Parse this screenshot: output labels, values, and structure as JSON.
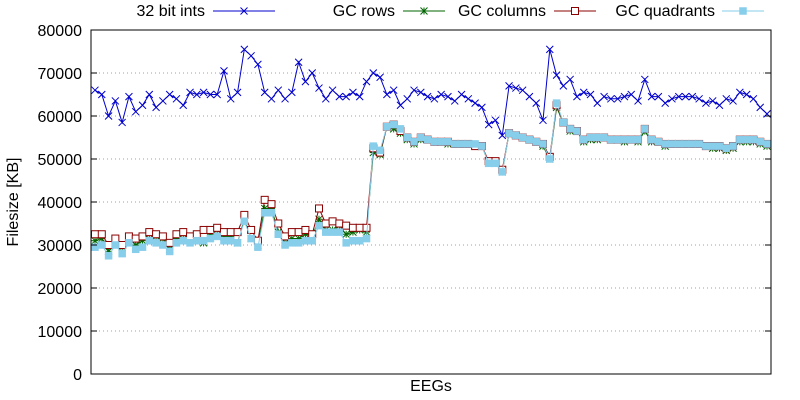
{
  "chart_data": {
    "type": "line",
    "title": "",
    "xlabel": "EEGs",
    "ylabel": "Filesize [KB]",
    "ylim": [
      0,
      80000
    ],
    "yticks": [
      0,
      10000,
      20000,
      30000,
      40000,
      50000,
      60000,
      70000,
      80000
    ],
    "grid": "horizontal dotted",
    "legend_placement": "top",
    "x": [
      1,
      2,
      3,
      4,
      5,
      6,
      7,
      8,
      9,
      10,
      11,
      12,
      13,
      14,
      15,
      16,
      17,
      18,
      19,
      20,
      21,
      22,
      23,
      24,
      25,
      26,
      27,
      28,
      29,
      30,
      31,
      32,
      33,
      34,
      35,
      36,
      37,
      38,
      39,
      40,
      41,
      42,
      43,
      44,
      45,
      46,
      47,
      48,
      49,
      50,
      51,
      52,
      53,
      54,
      55,
      56,
      57,
      58,
      59,
      60,
      61,
      62,
      63,
      64,
      65,
      66,
      67,
      68,
      69,
      70,
      71,
      72,
      73,
      74,
      75,
      76,
      77,
      78,
      79,
      80,
      81,
      82,
      83,
      84,
      85,
      86,
      87,
      88,
      89,
      90,
      91,
      92,
      93,
      94,
      95,
      96,
      97,
      98,
      99,
      100
    ],
    "series": [
      {
        "name": "32 bit ints",
        "color": "#0000cc",
        "marker": "x",
        "values": [
          66000,
          65000,
          60000,
          63500,
          58500,
          64500,
          61000,
          62500,
          65000,
          62000,
          63500,
          65000,
          64000,
          62500,
          65500,
          65000,
          65500,
          65000,
          65000,
          70500,
          64000,
          65500,
          75500,
          74000,
          72000,
          65500,
          64000,
          66000,
          64000,
          65500,
          72500,
          68000,
          70000,
          66500,
          64000,
          66000,
          64500,
          64500,
          65500,
          64500,
          68000,
          70000,
          69000,
          65000,
          66000,
          62500,
          64000,
          66000,
          65500,
          64500,
          64000,
          65000,
          64500,
          63500,
          65000,
          64000,
          63000,
          62000,
          58000,
          59000,
          55500,
          67000,
          66500,
          66000,
          64500,
          63000,
          59000,
          75500,
          69500,
          67000,
          68500,
          64500,
          65500,
          65000,
          63000,
          64500,
          64000,
          64000,
          64500,
          65000,
          63500,
          68500,
          64500,
          64500,
          63000,
          64000,
          64500,
          64500,
          64500,
          64000,
          63000,
          63500,
          62500,
          64000,
          63500,
          65500,
          65000,
          64000,
          62000,
          60500
        ]
      },
      {
        "name": "GC rows",
        "color": "#006400",
        "marker": "star",
        "values": [
          31000,
          31500,
          28500,
          31000,
          29500,
          31500,
          30000,
          31000,
          32500,
          32000,
          31500,
          29000,
          31500,
          32500,
          32000,
          31000,
          30500,
          32500,
          33500,
          32000,
          32000,
          30500,
          36000,
          31500,
          30000,
          38500,
          38500,
          33000,
          30500,
          31500,
          31500,
          32500,
          32000,
          36000,
          33500,
          33500,
          34500,
          32500,
          33000,
          33500,
          33000,
          51500,
          51000,
          57500,
          57000,
          56000,
          54500,
          53500,
          54500,
          54500,
          54000,
          54000,
          53500,
          53500,
          53500,
          53500,
          53000,
          53000,
          49000,
          49000,
          47000,
          56000,
          55500,
          55000,
          54500,
          54000,
          53000,
          50000,
          62000,
          58500,
          56500,
          56500,
          54000,
          54500,
          54500,
          55000,
          54500,
          54500,
          54000,
          54500,
          54000,
          56500,
          54000,
          54000,
          53000,
          53500,
          53500,
          53500,
          53500,
          53500,
          53000,
          52500,
          52500,
          52000,
          52500,
          54000,
          54000,
          54000,
          53500,
          53000
        ]
      },
      {
        "name": "GC columns",
        "color": "#8b0000",
        "marker": "square-open",
        "values": [
          32500,
          32500,
          30000,
          31500,
          30000,
          32000,
          31500,
          32000,
          33000,
          32500,
          32000,
          30500,
          32500,
          33000,
          32000,
          32500,
          33500,
          33500,
          34000,
          33000,
          33000,
          33000,
          37000,
          33500,
          31000,
          40500,
          39500,
          35000,
          32000,
          33000,
          33000,
          33500,
          32500,
          38500,
          35000,
          35500,
          35000,
          34500,
          34000,
          34000,
          34000,
          52500,
          51500,
          57500,
          58000,
          56500,
          55000,
          54000,
          55000,
          54500,
          54000,
          54000,
          54000,
          53500,
          53500,
          53500,
          53000,
          53000,
          49500,
          49500,
          47500,
          56000,
          55500,
          55000,
          54500,
          54000,
          53500,
          50500,
          62500,
          58500,
          57000,
          56500,
          54500,
          55000,
          55000,
          55000,
          54500,
          54500,
          54500,
          54500,
          54500,
          57000,
          54500,
          54000,
          53500,
          53500,
          53500,
          53500,
          53500,
          53500,
          53000,
          53000,
          53000,
          52500,
          53000,
          54500,
          54500,
          54500,
          54000,
          53500
        ]
      },
      {
        "name": "GC quadrants",
        "color": "#87ceeb",
        "marker": "square-filled",
        "values": [
          29500,
          30000,
          27500,
          30000,
          28000,
          30500,
          29000,
          29500,
          31000,
          30500,
          30000,
          28500,
          30500,
          31000,
          30500,
          31000,
          31000,
          31500,
          32000,
          31000,
          31000,
          30500,
          35500,
          31500,
          29500,
          37500,
          37500,
          32500,
          30000,
          30500,
          30500,
          31000,
          31000,
          34500,
          33000,
          33000,
          33000,
          30500,
          31000,
          31000,
          31500,
          53000,
          52000,
          57500,
          58000,
          57000,
          55000,
          54000,
          55000,
          54500,
          54000,
          54000,
          54000,
          53500,
          53500,
          53500,
          53500,
          53000,
          49000,
          49000,
          47000,
          56000,
          55500,
          55000,
          54500,
          54000,
          53500,
          50000,
          63000,
          58500,
          57000,
          56500,
          54500,
          55000,
          55000,
          55000,
          54500,
          54500,
          54500,
          54500,
          54500,
          57000,
          54500,
          54000,
          53500,
          53500,
          53500,
          53500,
          53500,
          53500,
          53000,
          53000,
          53000,
          52500,
          53000,
          54500,
          54500,
          54500,
          54000,
          53500
        ]
      }
    ]
  }
}
